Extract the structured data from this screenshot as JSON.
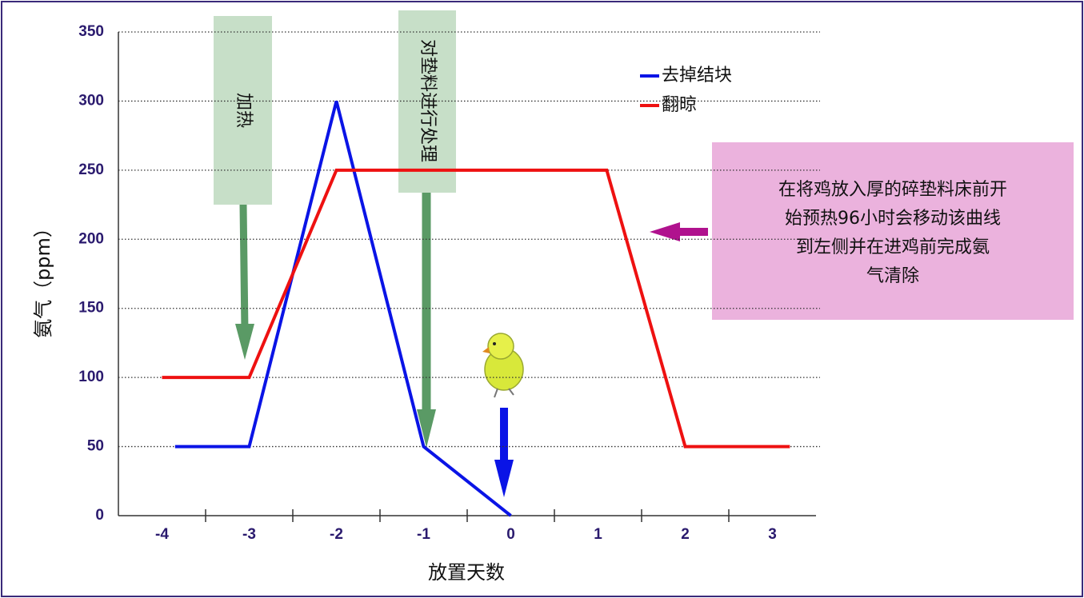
{
  "chart_data": {
    "type": "line",
    "x_label": "放置天数",
    "y_label": "氨气（ppm）",
    "xlim": [
      -4.5,
      3.5
    ],
    "xticks": [
      -4,
      -3,
      -2,
      -1,
      0,
      1,
      2,
      3
    ],
    "ylim": [
      0,
      350
    ],
    "yticks": [
      0,
      50,
      100,
      150,
      200,
      250,
      300,
      350
    ],
    "grid": true,
    "legend_position": "upper right",
    "series": [
      {
        "name": "去掉结块",
        "color": "#0a14e6",
        "x": [
          -3.85,
          -3,
          -2,
          -1,
          0
        ],
        "values": [
          50,
          50,
          300,
          50,
          0
        ]
      },
      {
        "name": "翻晾",
        "color": "#ee1111",
        "x": [
          -4,
          -3,
          -2,
          1.1,
          2,
          3.2
        ],
        "values": [
          100,
          100,
          250,
          250,
          50,
          50
        ]
      }
    ],
    "annotations": [
      {
        "text": "加热"
      },
      {
        "text": "对垫料进行处理"
      },
      {
        "lines": [
          "在将鸡放入厚的碎垫料床前开",
          "始预热96小时会移动该曲线",
          "到左侧并在进鸡前完成氨",
          "气清除"
        ]
      }
    ]
  }
}
